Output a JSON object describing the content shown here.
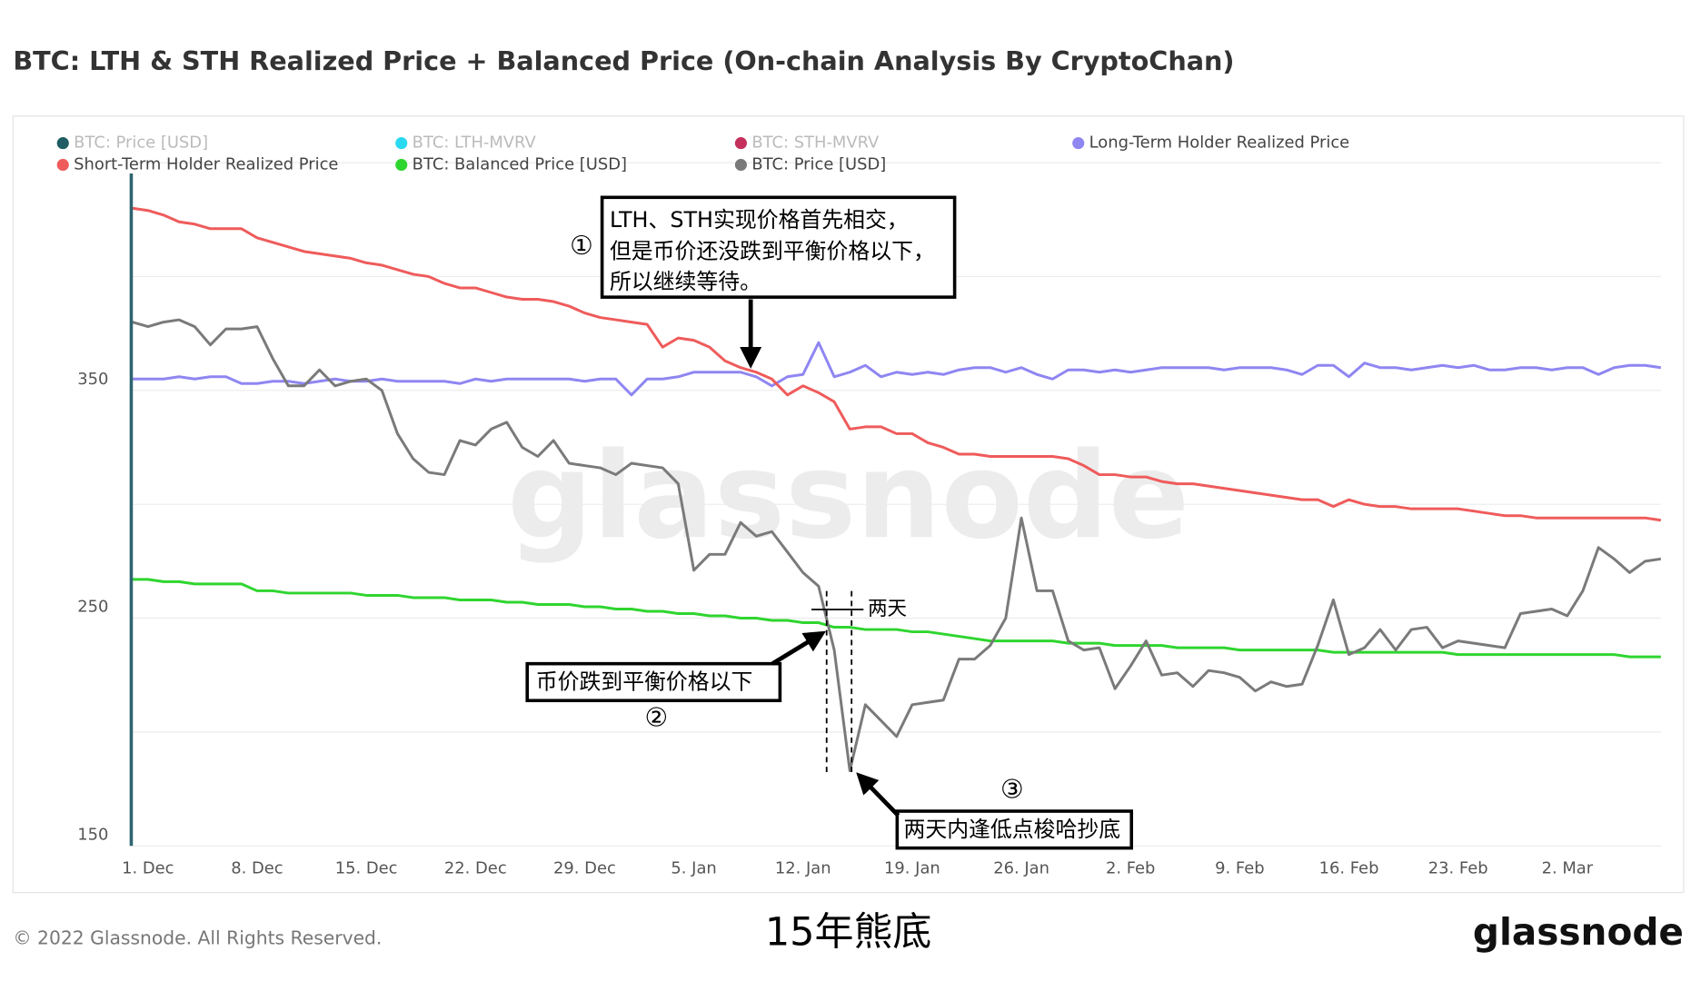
{
  "chart_data": {
    "type": "line",
    "title": "BTC: LTH & STH Realized Price + Balanced Price (On-chain Analysis By CryptoChan)",
    "categories": [
      null,
      "1. Dec",
      null,
      null,
      null,
      null,
      null,
      null,
      "8. Dec",
      null,
      null,
      null,
      null,
      null,
      null,
      "15. Dec",
      null,
      null,
      null,
      null,
      null,
      null,
      "22. Dec",
      null,
      null,
      null,
      null,
      null,
      null,
      "29. Dec",
      null,
      null,
      null,
      null,
      null,
      null,
      "5. Jan",
      null,
      null,
      null,
      null,
      null,
      null,
      "12. Jan",
      null,
      null,
      null,
      null,
      null,
      null,
      "19. Jan",
      null,
      null,
      null,
      null,
      null,
      null,
      "26. Jan",
      null,
      null,
      null,
      null,
      null,
      null,
      "2. Feb",
      null,
      null,
      null,
      null,
      null,
      null,
      "9. Feb",
      null,
      null,
      null,
      null,
      null,
      null,
      "16. Feb",
      null,
      null,
      null,
      null,
      null,
      null,
      "23. Feb",
      null,
      null,
      null,
      null,
      null,
      null,
      "2. Mar",
      null,
      null,
      null,
      null,
      null,
      null
    ],
    "series": [
      {
        "name": "Long-Term Holder Realized Price",
        "color": "#8f86f2",
        "values": [
          355,
          355,
          355,
          356,
          355,
          356,
          356,
          353,
          353,
          354,
          354,
          353,
          354,
          355,
          354,
          354,
          355,
          354,
          354,
          354,
          354,
          353,
          355,
          354,
          355,
          355,
          355,
          355,
          355,
          354,
          355,
          355,
          348,
          355,
          355,
          356,
          358,
          358,
          358,
          358,
          356,
          352,
          356,
          357,
          371,
          356,
          358,
          361,
          356,
          358,
          357,
          358,
          357,
          359,
          360,
          360,
          358,
          360,
          357,
          355,
          359,
          359,
          358,
          359,
          358,
          359,
          360,
          360,
          360,
          360,
          359,
          360,
          360,
          360,
          359,
          357,
          361,
          361,
          356,
          362,
          360,
          360,
          359,
          360,
          361,
          360,
          361,
          359,
          359,
          360,
          360,
          359,
          360,
          360,
          357,
          360,
          361,
          361,
          360
        ]
      },
      {
        "name": "Short-Term Holder Realized Price",
        "color": "#ef5b5b",
        "values": [
          430,
          429,
          427,
          424,
          423,
          421,
          421,
          421,
          417,
          415,
          413,
          411,
          410,
          409,
          408,
          406,
          405,
          403,
          401,
          400,
          397,
          395,
          395,
          393,
          391,
          390,
          390,
          389,
          387,
          384,
          382,
          381,
          380,
          379,
          369,
          373,
          372,
          369,
          363,
          360,
          358,
          355,
          348,
          352,
          349,
          345,
          333,
          334,
          334,
          331,
          331,
          327,
          325,
          322,
          322,
          321,
          321,
          321,
          321,
          321,
          320,
          317,
          313,
          313,
          312,
          312,
          310,
          309,
          309,
          308,
          307,
          306,
          305,
          304,
          303,
          302,
          302,
          299,
          302,
          300,
          299,
          299,
          298,
          298,
          298,
          298,
          297,
          296,
          295,
          295,
          294,
          294,
          294,
          294,
          294,
          294,
          294,
          294,
          293
        ]
      },
      {
        "name": "BTC: Balanced Price [USD]",
        "color": "#2fd52f",
        "values": [
          267,
          267,
          266,
          266,
          265,
          265,
          265,
          265,
          262,
          262,
          261,
          261,
          261,
          261,
          261,
          260,
          260,
          260,
          259,
          259,
          259,
          258,
          258,
          258,
          257,
          257,
          256,
          256,
          256,
          255,
          255,
          254,
          254,
          253,
          253,
          252,
          252,
          251,
          251,
          250,
          250,
          249,
          249,
          248,
          248,
          246,
          246,
          245,
          245,
          245,
          244,
          244,
          243,
          242,
          241,
          240,
          240,
          240,
          240,
          240,
          239,
          239,
          239,
          238,
          238,
          238,
          238,
          237,
          237,
          237,
          237,
          236,
          236,
          236,
          236,
          236,
          236,
          235,
          235,
          235,
          235,
          235,
          235,
          235,
          235,
          234,
          234,
          234,
          234,
          234,
          234,
          234,
          234,
          234,
          234,
          234,
          233,
          233,
          233
        ]
      },
      {
        "name": "BTC: Price [USD]",
        "color": "#7a7a7a",
        "values": [
          380,
          378,
          380,
          381,
          378,
          370,
          377,
          377,
          378,
          364,
          352,
          352,
          359,
          352,
          354,
          355,
          350,
          331,
          320,
          314,
          313,
          328,
          326,
          333,
          336,
          325,
          321,
          328,
          318,
          317,
          316,
          313,
          318,
          317,
          316,
          309,
          271,
          278,
          278,
          292,
          286,
          288,
          279,
          270,
          264,
          236,
          183,
          212,
          205,
          198,
          212,
          213,
          214,
          232,
          232,
          238,
          250,
          294,
          262,
          262,
          240,
          236,
          237,
          219,
          229,
          240,
          225,
          226,
          220,
          227,
          226,
          224,
          218,
          222,
          220,
          221,
          238,
          258,
          234,
          237,
          245,
          236,
          245,
          246,
          237,
          240,
          239,
          238,
          237,
          252,
          253,
          254,
          251,
          262,
          281,
          276,
          270,
          275,
          276
        ]
      }
    ],
    "hidden_series": [
      {
        "name": "BTC: Price [USD]",
        "color": "#1f5c64"
      },
      {
        "name": "BTC: LTH-MVRV",
        "color": "#29d9f0"
      },
      {
        "name": "BTC: STH-MVRV",
        "color": "#c42f5c"
      }
    ],
    "ylim": [
      150,
      467
    ],
    "yticks": [
      150,
      250,
      350
    ],
    "grid_lines": [
      200,
      300,
      400,
      450
    ],
    "grid": true,
    "annotations": {
      "box1": [
        "LTH、STH实现价格首先相交，",
        "但是币价还没跌到平衡价格以下，",
        "所以继续等待。"
      ],
      "mark1": "①",
      "box2": "币价跌到平衡价格以下",
      "mark2": "②",
      "box3": "两天内逢低点梭哈抄底",
      "mark3": "③",
      "gap": "两天"
    },
    "watermark": "glassnode",
    "footer": {
      "copyright": "© 2022 Glassnode. All Rights Reserved.",
      "caption": "15年熊底",
      "logo": "glassnode"
    }
  }
}
